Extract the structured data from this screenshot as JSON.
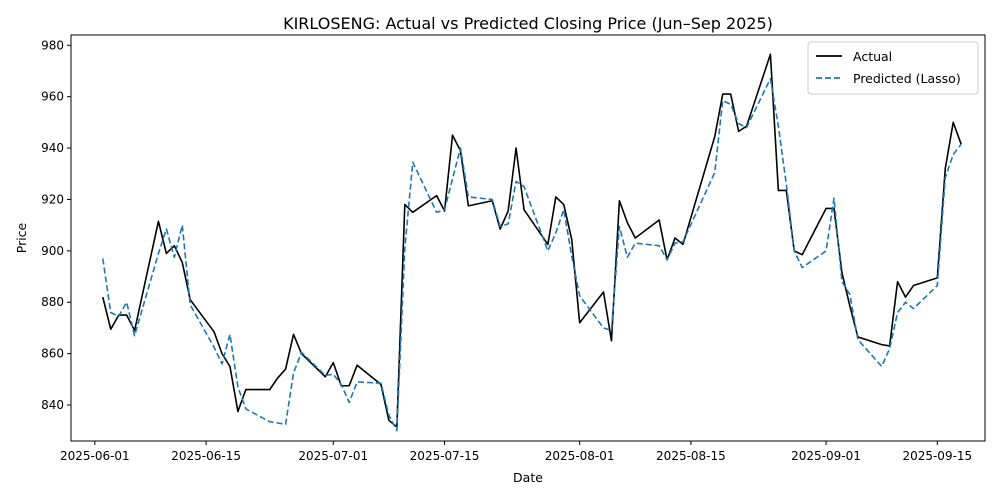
{
  "chart_data": {
    "type": "line",
    "title": "KIRLOSENG: Actual vs Predicted Closing Price (Jun–Sep 2025)",
    "xlabel": "Date",
    "ylabel": "Price",
    "x_ticks": [
      "2025-06-01",
      "2025-06-15",
      "2025-07-01",
      "2025-07-15",
      "2025-08-01",
      "2025-08-15",
      "2025-09-01",
      "2025-09-15"
    ],
    "y_ticks": [
      840,
      860,
      880,
      900,
      920,
      940,
      960,
      980
    ],
    "xlim": [
      "2025-05-29",
      "2025-09-21"
    ],
    "ylim": [
      826,
      984
    ],
    "grid": false,
    "legend_position": "top-right",
    "series": [
      {
        "name": "Actual",
        "color": "#000000",
        "style": "solid",
        "points": [
          [
            "2025-06-02",
            882
          ],
          [
            "2025-06-03",
            869.5
          ],
          [
            "2025-06-04",
            875
          ],
          [
            "2025-06-05",
            875
          ],
          [
            "2025-06-06",
            869
          ],
          [
            "2025-06-09",
            911.5
          ],
          [
            "2025-06-10",
            899
          ],
          [
            "2025-06-11",
            902
          ],
          [
            "2025-06-12",
            895.5
          ],
          [
            "2025-06-13",
            881
          ],
          [
            "2025-06-16",
            868.5
          ],
          [
            "2025-06-17",
            860
          ],
          [
            "2025-06-18",
            855
          ],
          [
            "2025-06-19",
            837.5
          ],
          [
            "2025-06-20",
            846
          ],
          [
            "2025-06-23",
            846
          ],
          [
            "2025-06-24",
            850.5
          ],
          [
            "2025-06-25",
            854
          ],
          [
            "2025-06-26",
            867.5
          ],
          [
            "2025-06-27",
            860
          ],
          [
            "2025-06-30",
            851
          ],
          [
            "2025-07-01",
            856.5
          ],
          [
            "2025-07-02",
            847.5
          ],
          [
            "2025-07-03",
            847.5
          ],
          [
            "2025-07-04",
            855.5
          ],
          [
            "2025-07-07",
            848
          ],
          [
            "2025-07-08",
            834
          ],
          [
            "2025-07-09",
            831.5
          ],
          [
            "2025-07-10",
            918
          ],
          [
            "2025-07-11",
            915
          ],
          [
            "2025-07-14",
            921.5
          ],
          [
            "2025-07-15",
            915.5
          ],
          [
            "2025-07-16",
            945
          ],
          [
            "2025-07-17",
            939
          ],
          [
            "2025-07-18",
            917.5
          ],
          [
            "2025-07-21",
            919.5
          ],
          [
            "2025-07-22",
            908.5
          ],
          [
            "2025-07-23",
            915.5
          ],
          [
            "2025-07-24",
            940
          ],
          [
            "2025-07-25",
            916
          ],
          [
            "2025-07-28",
            902.5
          ],
          [
            "2025-07-29",
            921
          ],
          [
            "2025-07-30",
            918
          ],
          [
            "2025-07-31",
            904.5
          ],
          [
            "2025-08-01",
            872
          ],
          [
            "2025-08-04",
            884
          ],
          [
            "2025-08-05",
            865
          ],
          [
            "2025-08-06",
            919.5
          ],
          [
            "2025-08-07",
            911
          ],
          [
            "2025-08-08",
            905
          ],
          [
            "2025-08-11",
            912
          ],
          [
            "2025-08-12",
            896.5
          ],
          [
            "2025-08-13",
            905
          ],
          [
            "2025-08-14",
            902.5
          ],
          [
            "2025-08-18",
            944.5
          ],
          [
            "2025-08-19",
            961
          ],
          [
            "2025-08-20",
            961
          ],
          [
            "2025-08-21",
            946.5
          ],
          [
            "2025-08-22",
            948.5
          ],
          [
            "2025-08-25",
            976.5
          ],
          [
            "2025-08-26",
            923.5
          ],
          [
            "2025-08-27",
            923.5
          ],
          [
            "2025-08-28",
            900
          ],
          [
            "2025-08-29",
            898.5
          ],
          [
            "2025-09-01",
            916.5
          ],
          [
            "2025-09-02",
            916.5
          ],
          [
            "2025-09-03",
            891.5
          ],
          [
            "2025-09-04",
            878.5
          ],
          [
            "2025-09-05",
            866.5
          ],
          [
            "2025-09-08",
            863.5
          ],
          [
            "2025-09-09",
            863
          ],
          [
            "2025-09-10",
            888
          ],
          [
            "2025-09-11",
            882
          ],
          [
            "2025-09-12",
            886.5
          ],
          [
            "2025-09-15",
            889.5
          ],
          [
            "2025-09-16",
            932
          ],
          [
            "2025-09-17",
            950
          ],
          [
            "2025-09-18",
            941.5
          ]
        ]
      },
      {
        "name": "Predicted (Lasso)",
        "color": "#1f77b4",
        "style": "dashed",
        "points": [
          [
            "2025-06-02",
            897
          ],
          [
            "2025-06-03",
            876
          ],
          [
            "2025-06-04",
            874.5
          ],
          [
            "2025-06-05",
            880
          ],
          [
            "2025-06-06",
            867
          ],
          [
            "2025-06-09",
            899
          ],
          [
            "2025-06-10",
            908.5
          ],
          [
            "2025-06-11",
            897.5
          ],
          [
            "2025-06-12",
            910
          ],
          [
            "2025-06-13",
            879
          ],
          [
            "2025-06-16",
            862.5
          ],
          [
            "2025-06-17",
            856
          ],
          [
            "2025-06-18",
            867.5
          ],
          [
            "2025-06-19",
            847
          ],
          [
            "2025-06-20",
            838.5
          ],
          [
            "2025-06-23",
            833.5
          ],
          [
            "2025-06-24",
            833
          ],
          [
            "2025-06-25",
            832.5
          ],
          [
            "2025-06-26",
            852.5
          ],
          [
            "2025-06-27",
            860.5
          ],
          [
            "2025-06-30",
            851.5
          ],
          [
            "2025-07-01",
            852
          ],
          [
            "2025-07-02",
            848
          ],
          [
            "2025-07-03",
            841
          ],
          [
            "2025-07-04",
            849
          ],
          [
            "2025-07-07",
            848.5
          ],
          [
            "2025-07-08",
            836
          ],
          [
            "2025-07-09",
            830
          ],
          [
            "2025-07-10",
            901
          ],
          [
            "2025-07-11",
            934.5
          ],
          [
            "2025-07-14",
            915
          ],
          [
            "2025-07-15",
            916
          ],
          [
            "2025-07-16",
            928
          ],
          [
            "2025-07-17",
            940
          ],
          [
            "2025-07-18",
            921
          ],
          [
            "2025-07-21",
            920
          ],
          [
            "2025-07-22",
            909.5
          ],
          [
            "2025-07-23",
            910.5
          ],
          [
            "2025-07-24",
            927
          ],
          [
            "2025-07-25",
            925
          ],
          [
            "2025-07-28",
            900
          ],
          [
            "2025-07-29",
            907
          ],
          [
            "2025-07-30",
            916
          ],
          [
            "2025-07-31",
            898
          ],
          [
            "2025-08-01",
            882.5
          ],
          [
            "2025-08-04",
            870
          ],
          [
            "2025-08-05",
            869
          ],
          [
            "2025-08-06",
            909.5
          ],
          [
            "2025-08-07",
            897.5
          ],
          [
            "2025-08-08",
            903
          ],
          [
            "2025-08-11",
            902
          ],
          [
            "2025-08-12",
            896.5
          ],
          [
            "2025-08-13",
            903
          ],
          [
            "2025-08-14",
            903.5
          ],
          [
            "2025-08-18",
            930.5
          ],
          [
            "2025-08-19",
            958.5
          ],
          [
            "2025-08-20",
            957
          ],
          [
            "2025-08-21",
            949.5
          ],
          [
            "2025-08-22",
            948
          ],
          [
            "2025-08-25",
            967
          ],
          [
            "2025-08-26",
            948.5
          ],
          [
            "2025-08-27",
            926
          ],
          [
            "2025-08-28",
            900
          ],
          [
            "2025-08-29",
            893.5
          ],
          [
            "2025-09-01",
            900
          ],
          [
            "2025-09-02",
            920.5
          ],
          [
            "2025-09-03",
            888
          ],
          [
            "2025-09-04",
            883
          ],
          [
            "2025-09-05",
            865.5
          ],
          [
            "2025-09-08",
            855
          ],
          [
            "2025-09-09",
            862
          ],
          [
            "2025-09-10",
            876
          ],
          [
            "2025-09-11",
            880
          ],
          [
            "2025-09-12",
            877.5
          ],
          [
            "2025-09-15",
            886.5
          ],
          [
            "2025-09-16",
            928.5
          ],
          [
            "2025-09-17",
            937.5
          ],
          [
            "2025-09-18",
            941.5
          ]
        ]
      }
    ]
  }
}
